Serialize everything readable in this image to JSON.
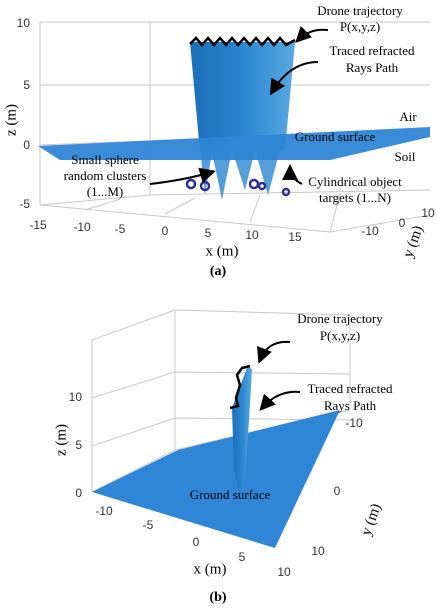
{
  "panels": [
    {
      "label": "(a)",
      "z_axis_label": "z (m)",
      "x_axis_label": "x (m)",
      "y_axis_label": "y (m)",
      "z_ticks": [
        "10",
        "5",
        "0",
        "-5"
      ],
      "x_ticks": [
        "-15",
        "-10",
        "-5",
        "0",
        "5",
        "10",
        "15"
      ],
      "y_ticks": [
        "-10",
        "0",
        "10"
      ],
      "annotations": [
        "Drone trajectory",
        "P(x,y,z)",
        "Traced refracted",
        "Rays Path",
        "Air",
        "Ground surface",
        "Soil",
        "Small sphere",
        "random clusters",
        "(1...M)",
        "Cylindrical object",
        "targets (1...N)"
      ]
    },
    {
      "label": "(b)",
      "z_axis_label": "z (m)",
      "x_axis_label": "x (m)",
      "y_axis_label": "y (m)",
      "z_ticks": [
        "10",
        "5",
        "0"
      ],
      "x_ticks": [
        "-10",
        "-5",
        "0",
        "5",
        "10"
      ],
      "y_ticks": [
        "-10",
        "0",
        "10"
      ],
      "annotations": [
        "Drone trajectory",
        "P(x,y,z)",
        "Traced refracted",
        "Rays Path",
        "Ground surface"
      ]
    }
  ]
}
